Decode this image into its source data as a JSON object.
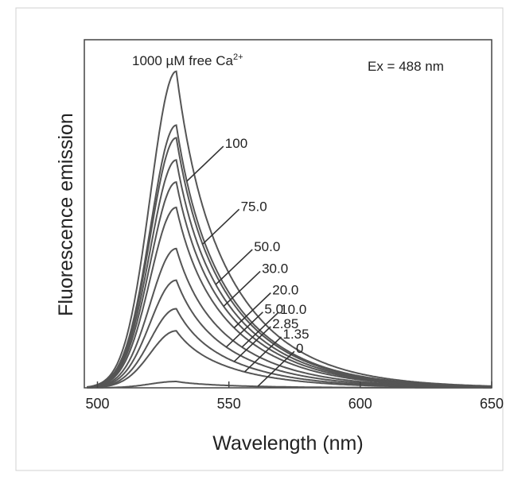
{
  "chart_data": {
    "type": "line",
    "title": "",
    "xlabel": "Wavelength (nm)",
    "ylabel": "Fluorescence emission",
    "xlim": [
      495,
      650
    ],
    "ylim": [
      0,
      1.1
    ],
    "xticks": [
      500,
      550,
      600,
      650
    ],
    "yticks": [],
    "grid": false,
    "legend": "none",
    "peak_wavelength": 530,
    "annotation": "Ex = 488 nm",
    "curve_label_prefix": "1000 µM free Ca",
    "curve_label_superscript": "2+",
    "series": [
      {
        "name": "1000",
        "peak": 1.0
      },
      {
        "name": "100",
        "peak": 0.83
      },
      {
        "name": "75.0",
        "peak": 0.79
      },
      {
        "name": "50.0",
        "peak": 0.72
      },
      {
        "name": "30.0",
        "peak": 0.65
      },
      {
        "name": "20.0",
        "peak": 0.57
      },
      {
        "name": "10.0",
        "peak": 0.44
      },
      {
        "name": "5.0",
        "peak": 0.34
      },
      {
        "name": "2.85",
        "peak": 0.25
      },
      {
        "name": "1.35",
        "peak": 0.18
      },
      {
        "name": "0",
        "peak": 0.02
      }
    ],
    "leader_targets": [
      {
        "label": "100",
        "x": 534
      },
      {
        "label": "75.0",
        "x": 540
      },
      {
        "label": "50.0",
        "x": 545
      },
      {
        "label": "30.0",
        "x": 548
      },
      {
        "label": "20.0",
        "x": 552
      },
      {
        "label": "10.0",
        "x": 555
      },
      {
        "label": "5.0",
        "x": 549
      },
      {
        "label": "2.85",
        "x": 552
      },
      {
        "label": "1.35",
        "x": 556
      },
      {
        "label": "0",
        "x": 561
      }
    ]
  }
}
